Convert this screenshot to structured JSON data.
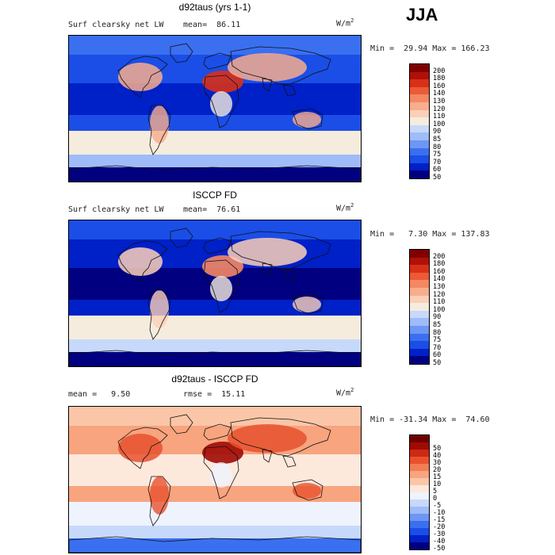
{
  "season": "JJA",
  "panels": [
    {
      "title": "d92taus (yrs 1-1)",
      "left_text": "Surf clearsky net LW",
      "mean_text": "mean=  86.11",
      "units": "W/m",
      "units_sup": "2",
      "minmax": "Min =  29.94 Max = 166.23",
      "colorbar": {
        "colors": [
          "#000080",
          "#0020c8",
          "#1a4ee6",
          "#3a6ff0",
          "#6d96f5",
          "#9fbcf8",
          "#c6d9fb",
          "#f6ecdd",
          "#fbd0b8",
          "#f8ad8c",
          "#f48764",
          "#ec5a36",
          "#d83018",
          "#b01008",
          "#800000"
        ],
        "labels": [
          "50",
          "60",
          "70",
          "75",
          "80",
          "85",
          "90",
          "100",
          "110",
          "120",
          "130",
          "140",
          "160",
          "180",
          "200"
        ]
      },
      "map_palette": "lw"
    },
    {
      "title": "ISCCP FD",
      "left_text": "Surf clearsky net LW",
      "mean_text": "mean=  76.61",
      "units": "W/m",
      "units_sup": "2",
      "minmax": "Min =   7.30 Max = 137.83",
      "colorbar": {
        "colors": [
          "#000080",
          "#0020c8",
          "#1a4ee6",
          "#3a6ff0",
          "#6d96f5",
          "#9fbcf8",
          "#c6d9fb",
          "#f6ecdd",
          "#fbd0b8",
          "#f8ad8c",
          "#f48764",
          "#ec5a36",
          "#d83018",
          "#b01008",
          "#800000"
        ],
        "labels": [
          "50",
          "60",
          "70",
          "75",
          "80",
          "85",
          "90",
          "100",
          "110",
          "120",
          "130",
          "140",
          "160",
          "180",
          "200"
        ]
      },
      "map_palette": "lw2"
    },
    {
      "title": "d92taus - ISCCP FD",
      "left_text": "mean =   9.50",
      "mean_text": "rmse =  15.11",
      "units": "W/m",
      "units_sup": "2",
      "minmax": "Min = -31.34 Max =  74.60",
      "colorbar": {
        "colors": [
          "#000080",
          "#0020c8",
          "#1a4ee6",
          "#3a6ff0",
          "#6d96f5",
          "#9fbcf8",
          "#c6d9fb",
          "#eef3fe",
          "#fde8dc",
          "#fbc6a8",
          "#f8a47e",
          "#f37c55",
          "#e8512e",
          "#cc2a12",
          "#a00a04",
          "#700000"
        ],
        "labels": [
          "-50",
          "-40",
          "-30",
          "-20",
          "-15",
          "-10",
          "-5",
          "0",
          "5",
          "10",
          "15",
          "20",
          "30",
          "40",
          "50"
        ]
      },
      "map_palette": "diff"
    }
  ]
}
